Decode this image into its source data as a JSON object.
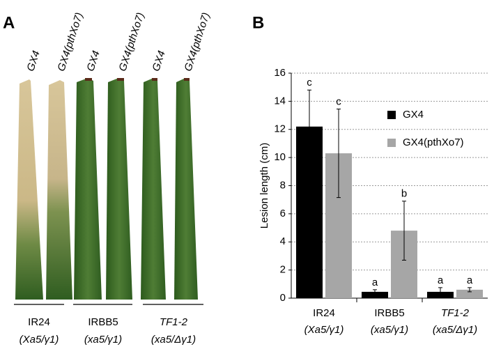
{
  "panel_labels": [
    "A",
    "B"
  ],
  "panel_a": {
    "leaf_labels": [
      "GX4",
      "GX4(pthXo7)",
      "GX4",
      "GX4(pthXo7)",
      "GX4",
      "GX4(pthXo7)"
    ],
    "groups": [
      {
        "name": "IR24",
        "genotype": "(Xa5/γ1)"
      },
      {
        "name": "IRBB5",
        "genotype": "(xa5/γ1)"
      },
      {
        "name": "TF1-2",
        "genotype": "(xa5/Δγ1)"
      }
    ]
  },
  "chart_data": {
    "type": "bar",
    "ylabel": "Lesion length (cm)",
    "categories": [
      "IR24",
      "IRBB5",
      "TF1-2"
    ],
    "category_genotypes": [
      "(Xa5/γ1)",
      "(xa5/γ1)",
      "(xa5/Δγ1)"
    ],
    "series": [
      {
        "name": "GX4",
        "color": "#000000",
        "values": [
          12.2,
          0.45,
          0.45
        ],
        "errors": [
          2.6,
          0.15,
          0.3
        ],
        "significance": [
          "c",
          "a",
          "a"
        ]
      },
      {
        "name": "GX4(pthXo7)",
        "color": "#a6a6a6",
        "values": [
          10.3,
          4.8,
          0.6
        ],
        "errors": [
          3.15,
          2.1,
          0.15
        ],
        "significance": [
          "c",
          "b",
          "a"
        ]
      }
    ],
    "ylim": [
      0,
      16
    ],
    "yticks": [
      0,
      2,
      4,
      6,
      8,
      10,
      12,
      14,
      16
    ],
    "grid": true
  }
}
